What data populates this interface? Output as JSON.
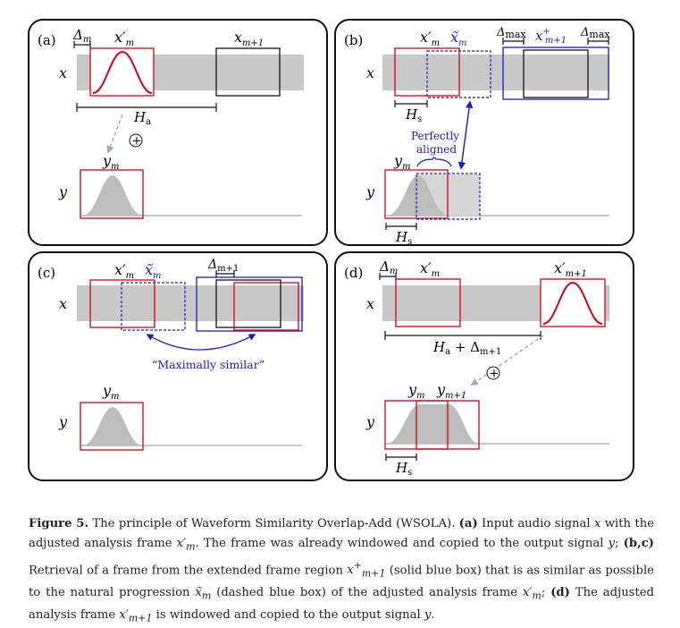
{
  "figure": {
    "panels": [
      {
        "id": "a",
        "tag": "(a)",
        "labels": {
          "x": "x",
          "y": "y",
          "delta": "Δ",
          "delta_sub": "m",
          "frame_top": "x′",
          "frame_top_sub": "m",
          "next": "x",
          "next_sub": "m+1",
          "ha": "H",
          "ha_sub": "a",
          "y_frame": "y",
          "y_frame_sub": "m",
          "plus": "+"
        }
      },
      {
        "id": "b",
        "tag": "(b)",
        "labels": {
          "x": "x",
          "y": "y",
          "frame_top": "x′",
          "frame_top_sub": "m",
          "tilde": "x̃",
          "tilde_sub": "m",
          "delta_max_left": "Δ",
          "delta_max_left_sub": "max",
          "plus_frame": "x",
          "plus_frame_sup": "+",
          "plus_frame_sub": "m+1",
          "delta_max_right": "Δ",
          "delta_max_right_sub": "max",
          "hs": "H",
          "hs_sub": "s",
          "aligned_1": "Perfectly",
          "aligned_2": "aligned",
          "y_frame": "y",
          "y_frame_sub": "m",
          "hs_bottom": "H",
          "hs_bottom_sub": "s"
        }
      },
      {
        "id": "c",
        "tag": "(c)",
        "labels": {
          "x": "x",
          "y": "y",
          "frame_top": "x′",
          "frame_top_sub": "m",
          "tilde": "x̃",
          "tilde_sub": "m",
          "delta": "Δ",
          "delta_sub": "m+1",
          "similar": "“Maximally similar”",
          "y_frame": "y",
          "y_frame_sub": "m"
        }
      },
      {
        "id": "d",
        "tag": "(d)",
        "labels": {
          "x": "x",
          "y": "y",
          "delta": "Δ",
          "delta_sub": "m",
          "frame_top": "x′",
          "frame_top_sub": "m",
          "next": "x′",
          "next_sub": "m+1",
          "ha": "H",
          "ha_sub": "a",
          "ha_plus": " + Δ",
          "ha_plus_sub": "m+1",
          "y_frame": "y",
          "y_frame_sub": "m",
          "y_next": "y",
          "y_next_sub": "m+1",
          "hs": "H",
          "hs_sub": "s",
          "plus": "+"
        }
      }
    ],
    "colors": {
      "signal_band": "#c8c8c8",
      "frame_red": "#d0021b",
      "frame_blue": "#1a1acc",
      "frame_black": "#111111",
      "bump_fill": "#bdbdbd",
      "arrow_gray": "#a8a8a8",
      "panel_border": "#111111"
    }
  },
  "caption": {
    "label": "Figure 5.",
    "s1": " The principle of Waveform Similarity Overlap-Add (WSOLA). ",
    "p_a": "(a)",
    "s2": " Input audio signal ",
    "v_x": "x",
    "s3": " with the adjusted analysis frame ",
    "v_xm": "x′",
    "v_xm_sub": "m",
    "s4": ". The frame was already windowed and copied to the output signal ",
    "v_y": "y",
    "s5": "; ",
    "p_bc": "(b,c)",
    "s6": " Retrieval of a frame from the extended frame region ",
    "v_xplus": "x",
    "v_xplus_sup": "+",
    "v_xplus_sub": "m+1",
    "s7": " (solid blue box) that is as similar as possible to the natural progression ",
    "v_xt": "x̃",
    "v_xt_sub": "m",
    "s8": " (dashed blue box) of the adjusted analysis frame ",
    "v_xm2": "x′",
    "v_xm2_sub": "m",
    "s9": "; ",
    "p_d": "(d)",
    "s10": " The adjusted analysis frame ",
    "v_xm1": "x′",
    "v_xm1_sub": "m+1",
    "s11": " is windowed and copied to the output signal ",
    "v_y2": "y",
    "s12": "."
  }
}
